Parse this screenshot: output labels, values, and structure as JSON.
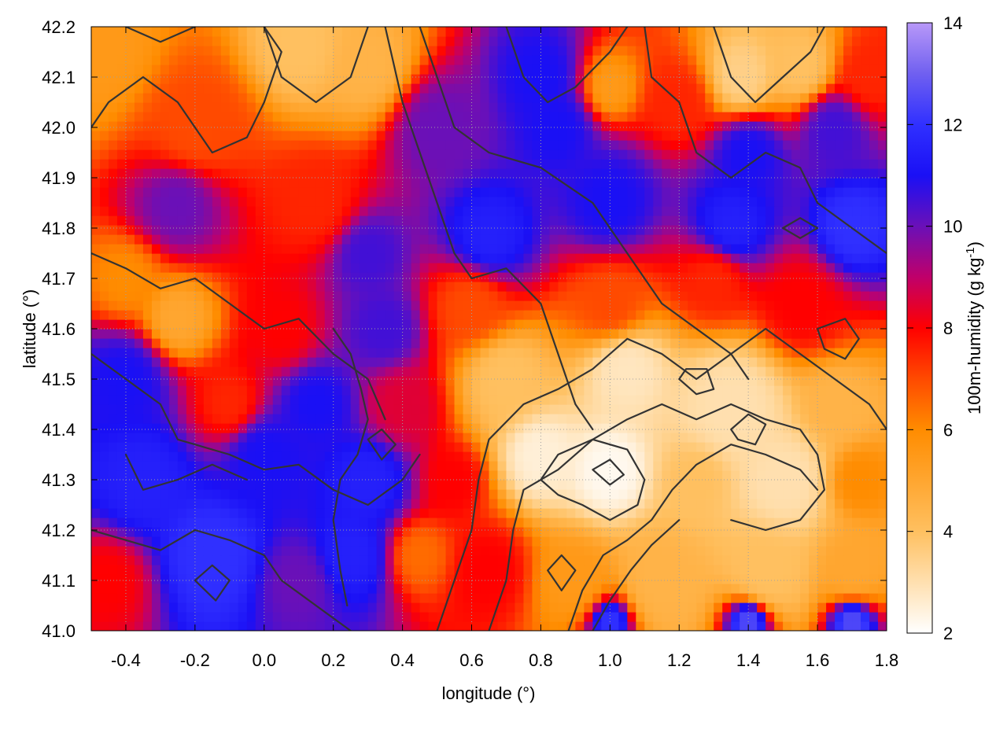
{
  "chart_data": {
    "type": "heatmap",
    "title": "",
    "xlabel": "longitude (°)",
    "ylabel": "latitude (°)",
    "colorbar_label_main": "100m-humidity (g kg",
    "colorbar_label_sup": "-1",
    "colorbar_label_end": ")",
    "xlim": [
      -0.5,
      1.8
    ],
    "ylim": [
      41.0,
      42.2
    ],
    "x_ticks": [
      -0.4,
      -0.2,
      0.0,
      0.2,
      0.4,
      0.6,
      0.8,
      1.0,
      1.2,
      1.4,
      1.6,
      1.8
    ],
    "x_tick_labels": [
      "-0.4",
      "-0.2",
      "0.0",
      "0.2",
      "0.4",
      "0.6",
      "0.8",
      "1.0",
      "1.2",
      "1.4",
      "1.6",
      "1.8"
    ],
    "y_ticks": [
      41.0,
      41.1,
      41.2,
      41.3,
      41.4,
      41.5,
      41.6,
      41.7,
      41.8,
      41.9,
      42.0,
      42.1,
      42.2
    ],
    "y_tick_labels": [
      "41.0",
      "41.1",
      "41.2",
      "41.3",
      "41.4",
      "41.5",
      "41.6",
      "41.7",
      "41.8",
      "41.9",
      "42.0",
      "42.1",
      "42.2"
    ],
    "colorbar_range": [
      2,
      14
    ],
    "colorbar_ticks": [
      2,
      4,
      6,
      8,
      10,
      12,
      14
    ],
    "colorbar_tick_labels": [
      "2",
      "4",
      "6",
      "8",
      "10",
      "12",
      "14"
    ],
    "colormap_stops": [
      {
        "value": 2,
        "color": "#ffffff"
      },
      {
        "value": 4,
        "color": "#ffc060"
      },
      {
        "value": 6,
        "color": "#ff8c00"
      },
      {
        "value": 7,
        "color": "#ff4a00"
      },
      {
        "value": 8,
        "color": "#ff0000"
      },
      {
        "value": 9,
        "color": "#c0006a"
      },
      {
        "value": 10,
        "color": "#6a10b8"
      },
      {
        "value": 11,
        "color": "#1a10f5"
      },
      {
        "value": 12,
        "color": "#3030ff"
      },
      {
        "value": 13,
        "color": "#7060f0"
      },
      {
        "value": 14,
        "color": "#b898f8"
      }
    ],
    "grid": true,
    "contour_color": "#333333",
    "field_blobs": [
      {
        "lon": -0.48,
        "lat": 42.15,
        "v": 5.5,
        "s": 0.15
      },
      {
        "lon": 0.1,
        "lat": 42.16,
        "v": 4.0,
        "s": 0.12
      },
      {
        "lon": 0.3,
        "lat": 42.12,
        "v": 4.5,
        "s": 0.12
      },
      {
        "lon": -0.2,
        "lat": 42.0,
        "v": 7.0,
        "s": 0.15
      },
      {
        "lon": 0.5,
        "lat": 42.0,
        "v": 10.0,
        "s": 0.12
      },
      {
        "lon": 0.8,
        "lat": 42.1,
        "v": 11.0,
        "s": 0.1
      },
      {
        "lon": 0.85,
        "lat": 42.0,
        "v": 11.0,
        "s": 0.1
      },
      {
        "lon": 1.0,
        "lat": 42.08,
        "v": 5.5,
        "s": 0.08
      },
      {
        "lon": 1.2,
        "lat": 42.05,
        "v": 7.5,
        "s": 0.1
      },
      {
        "lon": 1.38,
        "lat": 42.1,
        "v": 3.5,
        "s": 0.1
      },
      {
        "lon": 1.55,
        "lat": 42.12,
        "v": 4.0,
        "s": 0.1
      },
      {
        "lon": 1.65,
        "lat": 42.0,
        "v": 10.5,
        "s": 0.1
      },
      {
        "lon": 1.75,
        "lat": 42.1,
        "v": 7.5,
        "s": 0.1
      },
      {
        "lon": 1.4,
        "lat": 41.95,
        "v": 11.0,
        "s": 0.1
      },
      {
        "lon": -0.25,
        "lat": 41.85,
        "v": 10.0,
        "s": 0.12
      },
      {
        "lon": 0.15,
        "lat": 41.85,
        "v": 7.5,
        "s": 0.12
      },
      {
        "lon": 0.3,
        "lat": 41.75,
        "v": 10.5,
        "s": 0.1
      },
      {
        "lon": 0.65,
        "lat": 41.78,
        "v": 11.5,
        "s": 0.12
      },
      {
        "lon": 1.0,
        "lat": 41.85,
        "v": 11.0,
        "s": 0.12
      },
      {
        "lon": 1.35,
        "lat": 41.8,
        "v": 11.5,
        "s": 0.12
      },
      {
        "lon": 1.7,
        "lat": 41.8,
        "v": 12.0,
        "s": 0.1
      },
      {
        "lon": -0.4,
        "lat": 41.7,
        "v": 6.0,
        "s": 0.1
      },
      {
        "lon": -0.25,
        "lat": 41.62,
        "v": 5.0,
        "s": 0.1
      },
      {
        "lon": 0.05,
        "lat": 41.6,
        "v": 8.0,
        "s": 0.1
      },
      {
        "lon": 0.35,
        "lat": 41.6,
        "v": 10.5,
        "s": 0.1
      },
      {
        "lon": 0.6,
        "lat": 41.65,
        "v": 7.0,
        "s": 0.12
      },
      {
        "lon": 1.0,
        "lat": 41.65,
        "v": 7.0,
        "s": 0.12
      },
      {
        "lon": 1.3,
        "lat": 41.7,
        "v": 7.5,
        "s": 0.12
      },
      {
        "lon": 1.55,
        "lat": 41.65,
        "v": 8.0,
        "s": 0.12
      },
      {
        "lon": -0.4,
        "lat": 41.5,
        "v": 11.0,
        "s": 0.12
      },
      {
        "lon": -0.1,
        "lat": 41.45,
        "v": 7.5,
        "s": 0.1
      },
      {
        "lon": 0.15,
        "lat": 41.45,
        "v": 11.0,
        "s": 0.1
      },
      {
        "lon": 0.4,
        "lat": 41.45,
        "v": 8.5,
        "s": 0.1
      },
      {
        "lon": 0.7,
        "lat": 41.5,
        "v": 4.0,
        "s": 0.12
      },
      {
        "lon": 1.05,
        "lat": 41.52,
        "v": 2.8,
        "s": 0.12
      },
      {
        "lon": 1.35,
        "lat": 41.45,
        "v": 3.0,
        "s": 0.15
      },
      {
        "lon": 1.65,
        "lat": 41.45,
        "v": 4.5,
        "s": 0.1
      },
      {
        "lon": -0.35,
        "lat": 41.3,
        "v": 11.5,
        "s": 0.12
      },
      {
        "lon": 0.0,
        "lat": 41.35,
        "v": 11.0,
        "s": 0.12
      },
      {
        "lon": 0.3,
        "lat": 41.3,
        "v": 11.5,
        "s": 0.1
      },
      {
        "lon": 0.55,
        "lat": 41.3,
        "v": 8.0,
        "s": 0.08
      },
      {
        "lon": 0.8,
        "lat": 41.35,
        "v": 2.5,
        "s": 0.1
      },
      {
        "lon": 1.0,
        "lat": 41.32,
        "v": 2.2,
        "s": 0.1
      },
      {
        "lon": 1.25,
        "lat": 41.3,
        "v": 4.0,
        "s": 0.1
      },
      {
        "lon": 1.5,
        "lat": 41.3,
        "v": 3.0,
        "s": 0.12
      },
      {
        "lon": 1.72,
        "lat": 41.3,
        "v": 6.0,
        "s": 0.08
      },
      {
        "lon": -0.45,
        "lat": 41.1,
        "v": 8.0,
        "s": 0.1
      },
      {
        "lon": -0.15,
        "lat": 41.15,
        "v": 12.0,
        "s": 0.12
      },
      {
        "lon": 0.1,
        "lat": 41.1,
        "v": 10.0,
        "s": 0.1
      },
      {
        "lon": 0.25,
        "lat": 41.15,
        "v": 11.5,
        "s": 0.1
      },
      {
        "lon": 0.45,
        "lat": 41.15,
        "v": 6.5,
        "s": 0.08
      },
      {
        "lon": 0.65,
        "lat": 41.12,
        "v": 8.0,
        "s": 0.1
      },
      {
        "lon": 0.9,
        "lat": 41.1,
        "v": 5.5,
        "s": 0.1
      },
      {
        "lon": 1.15,
        "lat": 41.1,
        "v": 4.5,
        "s": 0.12
      },
      {
        "lon": 1.45,
        "lat": 41.12,
        "v": 4.0,
        "s": 0.12
      },
      {
        "lon": 1.7,
        "lat": 41.12,
        "v": 5.0,
        "s": 0.1
      },
      {
        "lon": 1.0,
        "lat": 41.02,
        "v": 12.0,
        "s": 0.06
      },
      {
        "lon": 1.4,
        "lat": 41.02,
        "v": 12.5,
        "s": 0.06
      },
      {
        "lon": 1.7,
        "lat": 41.02,
        "v": 12.5,
        "s": 0.06
      }
    ],
    "contours": [
      [
        [
          -0.5,
          42.0
        ],
        [
          -0.45,
          42.05
        ],
        [
          -0.35,
          42.1
        ],
        [
          -0.25,
          42.05
        ],
        [
          -0.15,
          41.95
        ],
        [
          -0.05,
          41.98
        ],
        [
          0.0,
          42.05
        ],
        [
          0.05,
          42.15
        ],
        [
          0.0,
          42.2
        ]
      ],
      [
        [
          -0.4,
          42.2
        ],
        [
          -0.3,
          42.17
        ],
        [
          -0.2,
          42.2
        ]
      ],
      [
        [
          0.0,
          42.2
        ],
        [
          0.05,
          42.1
        ],
        [
          0.15,
          42.05
        ],
        [
          0.25,
          42.1
        ],
        [
          0.3,
          42.2
        ]
      ],
      [
        [
          0.35,
          42.2
        ],
        [
          0.4,
          42.05
        ],
        [
          0.45,
          41.95
        ],
        [
          0.5,
          41.85
        ],
        [
          0.55,
          41.75
        ],
        [
          0.6,
          41.7
        ],
        [
          0.7,
          41.72
        ],
        [
          0.8,
          41.65
        ],
        [
          0.85,
          41.55
        ],
        [
          0.9,
          41.45
        ],
        [
          0.95,
          41.4
        ]
      ],
      [
        [
          0.45,
          42.2
        ],
        [
          0.5,
          42.1
        ],
        [
          0.55,
          42.0
        ],
        [
          0.65,
          41.95
        ],
        [
          0.8,
          41.92
        ],
        [
          0.95,
          41.85
        ],
        [
          1.05,
          41.75
        ],
        [
          1.15,
          41.65
        ],
        [
          1.25,
          41.6
        ],
        [
          1.35,
          41.55
        ],
        [
          1.4,
          41.5
        ]
      ],
      [
        [
          0.7,
          42.2
        ],
        [
          0.75,
          42.1
        ],
        [
          0.82,
          42.05
        ],
        [
          0.9,
          42.08
        ],
        [
          1.0,
          42.15
        ],
        [
          1.05,
          42.2
        ]
      ],
      [
        [
          1.1,
          42.2
        ],
        [
          1.12,
          42.1
        ],
        [
          1.2,
          42.05
        ],
        [
          1.25,
          41.95
        ],
        [
          1.35,
          41.9
        ],
        [
          1.45,
          41.95
        ],
        [
          1.55,
          41.92
        ],
        [
          1.6,
          41.85
        ],
        [
          1.7,
          41.8
        ],
        [
          1.8,
          41.75
        ]
      ],
      [
        [
          1.3,
          42.2
        ],
        [
          1.35,
          42.1
        ],
        [
          1.42,
          42.05
        ],
        [
          1.5,
          42.1
        ],
        [
          1.58,
          42.15
        ],
        [
          1.62,
          42.2
        ]
      ],
      [
        [
          -0.5,
          41.75
        ],
        [
          -0.4,
          41.72
        ],
        [
          -0.3,
          41.68
        ],
        [
          -0.2,
          41.7
        ],
        [
          -0.1,
          41.65
        ],
        [
          0.0,
          41.6
        ],
        [
          0.1,
          41.62
        ],
        [
          0.2,
          41.55
        ],
        [
          0.3,
          41.5
        ],
        [
          0.35,
          41.42
        ]
      ],
      [
        [
          -0.5,
          41.55
        ],
        [
          -0.4,
          41.5
        ],
        [
          -0.3,
          41.45
        ],
        [
          -0.25,
          41.38
        ],
        [
          -0.1,
          41.35
        ],
        [
          0.0,
          41.32
        ],
        [
          0.1,
          41.33
        ],
        [
          0.2,
          41.28
        ],
        [
          0.3,
          41.25
        ],
        [
          0.4,
          41.3
        ],
        [
          0.45,
          41.35
        ]
      ],
      [
        [
          -0.4,
          41.35
        ],
        [
          -0.35,
          41.28
        ],
        [
          -0.25,
          41.3
        ],
        [
          -0.15,
          41.33
        ],
        [
          -0.05,
          41.3
        ]
      ],
      [
        [
          -0.5,
          41.2
        ],
        [
          -0.4,
          41.18
        ],
        [
          -0.3,
          41.16
        ],
        [
          -0.2,
          41.2
        ],
        [
          -0.1,
          41.18
        ],
        [
          0.0,
          41.15
        ],
        [
          0.05,
          41.1
        ],
        [
          0.15,
          41.05
        ],
        [
          0.25,
          41.0
        ]
      ],
      [
        [
          0.5,
          41.0
        ],
        [
          0.55,
          41.1
        ],
        [
          0.6,
          41.2
        ],
        [
          0.62,
          41.3
        ],
        [
          0.65,
          41.38
        ],
        [
          0.75,
          41.45
        ],
        [
          0.85,
          41.48
        ],
        [
          0.95,
          41.52
        ],
        [
          1.05,
          41.58
        ],
        [
          1.15,
          41.55
        ],
        [
          1.25,
          41.5
        ],
        [
          1.35,
          41.55
        ],
        [
          1.45,
          41.6
        ],
        [
          1.55,
          41.55
        ],
        [
          1.65,
          41.5
        ],
        [
          1.75,
          41.45
        ],
        [
          1.8,
          41.4
        ]
      ],
      [
        [
          0.65,
          41.0
        ],
        [
          0.7,
          41.1
        ],
        [
          0.72,
          41.2
        ],
        [
          0.75,
          41.28
        ],
        [
          0.85,
          41.32
        ],
        [
          0.95,
          41.38
        ],
        [
          1.05,
          41.42
        ],
        [
          1.15,
          41.45
        ],
        [
          1.25,
          41.42
        ],
        [
          1.35,
          41.45
        ],
        [
          1.45,
          41.42
        ],
        [
          1.55,
          41.4
        ],
        [
          1.6,
          41.35
        ],
        [
          1.62,
          41.28
        ],
        [
          1.55,
          41.22
        ],
        [
          1.45,
          41.2
        ],
        [
          1.35,
          41.22
        ]
      ],
      [
        [
          0.8,
          41.3
        ],
        [
          0.85,
          41.35
        ],
        [
          0.95,
          41.38
        ],
        [
          1.05,
          41.36
        ],
        [
          1.1,
          41.3
        ],
        [
          1.08,
          41.25
        ],
        [
          1.0,
          41.22
        ],
        [
          0.92,
          41.25
        ],
        [
          0.85,
          41.27
        ],
        [
          0.8,
          41.3
        ]
      ],
      [
        [
          0.95,
          41.32
        ],
        [
          1.0,
          41.34
        ],
        [
          1.04,
          41.31
        ],
        [
          1.0,
          41.29
        ],
        [
          0.95,
          41.32
        ]
      ],
      [
        [
          0.88,
          41.0
        ],
        [
          0.92,
          41.08
        ],
        [
          0.98,
          41.15
        ],
        [
          1.05,
          41.18
        ],
        [
          1.12,
          41.22
        ],
        [
          1.18,
          41.28
        ],
        [
          1.25,
          41.33
        ],
        [
          1.35,
          41.37
        ],
        [
          1.45,
          41.35
        ],
        [
          1.55,
          41.32
        ],
        [
          1.6,
          41.28
        ]
      ],
      [
        [
          0.95,
          41.0
        ],
        [
          1.0,
          41.06
        ],
        [
          1.06,
          41.12
        ],
        [
          1.12,
          41.17
        ],
        [
          1.2,
          41.22
        ]
      ],
      [
        [
          1.2,
          41.5
        ],
        [
          1.25,
          41.47
        ],
        [
          1.3,
          41.48
        ],
        [
          1.28,
          41.52
        ],
        [
          1.22,
          41.52
        ],
        [
          1.2,
          41.5
        ]
      ],
      [
        [
          1.35,
          41.4
        ],
        [
          1.4,
          41.43
        ],
        [
          1.45,
          41.41
        ],
        [
          1.42,
          41.37
        ],
        [
          1.37,
          41.38
        ],
        [
          1.35,
          41.4
        ]
      ],
      [
        [
          1.6,
          41.6
        ],
        [
          1.68,
          41.62
        ],
        [
          1.72,
          41.58
        ],
        [
          1.68,
          41.54
        ],
        [
          1.62,
          41.56
        ],
        [
          1.6,
          41.6
        ]
      ],
      [
        [
          -0.2,
          41.1
        ],
        [
          -0.15,
          41.13
        ],
        [
          -0.1,
          41.1
        ],
        [
          -0.14,
          41.06
        ],
        [
          -0.2,
          41.1
        ]
      ],
      [
        [
          0.3,
          41.38
        ],
        [
          0.34,
          41.4
        ],
        [
          0.38,
          41.37
        ],
        [
          0.34,
          41.34
        ],
        [
          0.3,
          41.38
        ]
      ],
      [
        [
          0.82,
          41.12
        ],
        [
          0.86,
          41.15
        ],
        [
          0.9,
          41.12
        ],
        [
          0.86,
          41.08
        ],
        [
          0.82,
          41.12
        ]
      ],
      [
        [
          0.2,
          41.6
        ],
        [
          0.25,
          41.55
        ],
        [
          0.28,
          41.48
        ],
        [
          0.3,
          41.42
        ],
        [
          0.27,
          41.35
        ],
        [
          0.22,
          41.3
        ],
        [
          0.2,
          41.22
        ],
        [
          0.22,
          41.12
        ],
        [
          0.24,
          41.05
        ]
      ],
      [
        [
          1.5,
          41.8
        ],
        [
          1.55,
          41.82
        ],
        [
          1.6,
          41.8
        ],
        [
          1.55,
          41.78
        ],
        [
          1.5,
          41.8
        ]
      ]
    ]
  }
}
